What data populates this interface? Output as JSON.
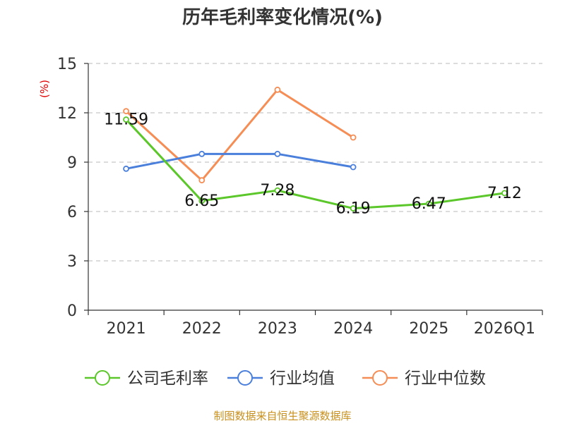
{
  "chart_data": {
    "type": "line",
    "title": "历年毛利率变化情况(%)",
    "ylabel": "(%)",
    "xlabel": "",
    "categories": [
      "2021",
      "2022",
      "2023",
      "2024",
      "2025",
      "2026Q1"
    ],
    "ylim": [
      0,
      15
    ],
    "yticks": [
      0,
      3,
      6,
      9,
      12,
      15
    ],
    "grid": "horizontal-dashed",
    "legend_position": "bottom",
    "series": [
      {
        "name": "公司毛利率",
        "color": "#5bc72a",
        "values": [
          11.59,
          6.65,
          7.28,
          6.19,
          6.47,
          7.12
        ],
        "labels": [
          "11.59",
          "6.65",
          "7.28",
          "6.19",
          "6.47",
          "7.12"
        ]
      },
      {
        "name": "行业均值",
        "color": "#4a7fdc",
        "values": [
          8.6,
          9.5,
          9.5,
          8.7,
          null,
          null
        ]
      },
      {
        "name": "行业中位数",
        "color": "#f58d55",
        "values": [
          12.1,
          7.9,
          13.4,
          10.5,
          null,
          null
        ]
      }
    ]
  },
  "source": "制图数据来自恒生聚源数据库"
}
